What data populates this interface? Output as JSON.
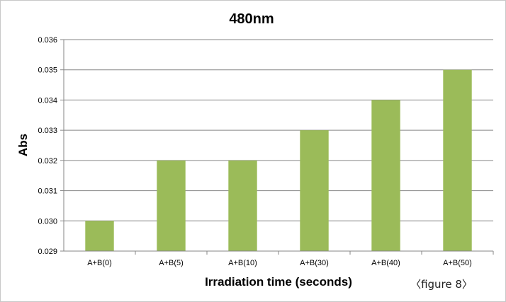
{
  "chart_data": {
    "type": "bar",
    "title": "480nm",
    "xlabel": "Irradiation time (seconds)",
    "ylabel": "Abs",
    "categories": [
      "A+B(0)",
      "A+B(5)",
      "A+B(10)",
      "A+B(30)",
      "A+B(40)",
      "A+B(50)"
    ],
    "values": [
      0.03,
      0.032,
      0.032,
      0.033,
      0.034,
      0.035
    ],
    "ylim": [
      0.029,
      0.036
    ],
    "yticks": [
      "0.029",
      "0.030",
      "0.031",
      "0.032",
      "0.033",
      "0.034",
      "0.035",
      "0.036"
    ],
    "grid": true,
    "legend": "none",
    "bar_color": "#9bbb59",
    "grid_color": "#868686"
  },
  "caption": "〈figure 8〉"
}
